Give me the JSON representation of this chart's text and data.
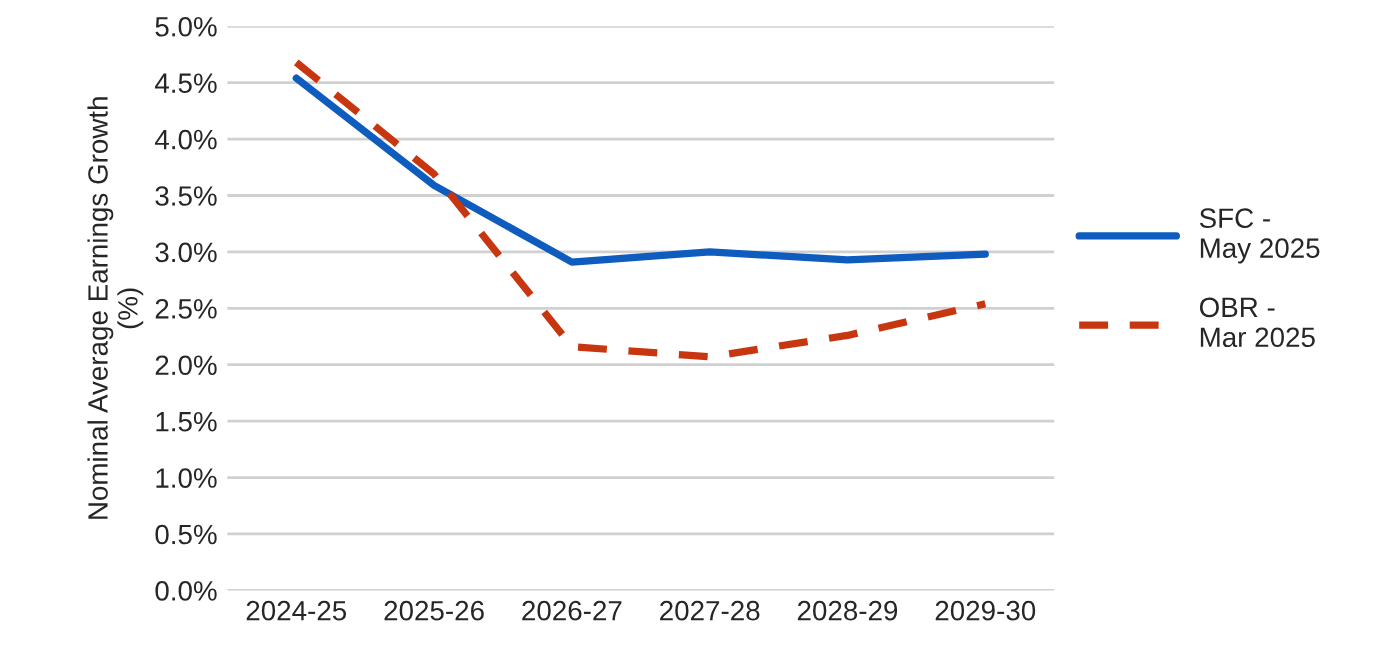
{
  "chart_data": {
    "type": "line",
    "ylabel": "Nominal Average Earnings Growth\n(%)",
    "categories": [
      "2024-25",
      "2025-26",
      "2026-27",
      "2027-28",
      "2028-29",
      "2029-30"
    ],
    "series": [
      {
        "name": "SFC -\nMay 2025",
        "color": "#0f5cbf",
        "line_style": "solid",
        "values": [
          4.54,
          3.59,
          2.91,
          3.0,
          2.93,
          2.98
        ]
      },
      {
        "name": "OBR -\nMar 2025",
        "color": "#c8360f",
        "line_style": "dashed",
        "values": [
          4.68,
          3.69,
          2.16,
          2.07,
          2.26,
          2.54
        ]
      }
    ],
    "ylim": [
      0,
      5
    ],
    "yticks": [
      {
        "value": 0,
        "label": "0.0%"
      },
      {
        "value": 0.5,
        "label": "0.5%"
      },
      {
        "value": 1,
        "label": "1.0%"
      },
      {
        "value": 1.5,
        "label": "1.5%"
      },
      {
        "value": 2,
        "label": "2.0%"
      },
      {
        "value": 2.5,
        "label": "2.5%"
      },
      {
        "value": 3,
        "label": "3.0%"
      },
      {
        "value": 3.5,
        "label": "3.5%"
      },
      {
        "value": 4,
        "label": "4.0%"
      },
      {
        "value": 4.5,
        "label": "4.5%"
      },
      {
        "value": 5,
        "label": "5.0%"
      }
    ],
    "grid": "y",
    "legend": "right"
  }
}
